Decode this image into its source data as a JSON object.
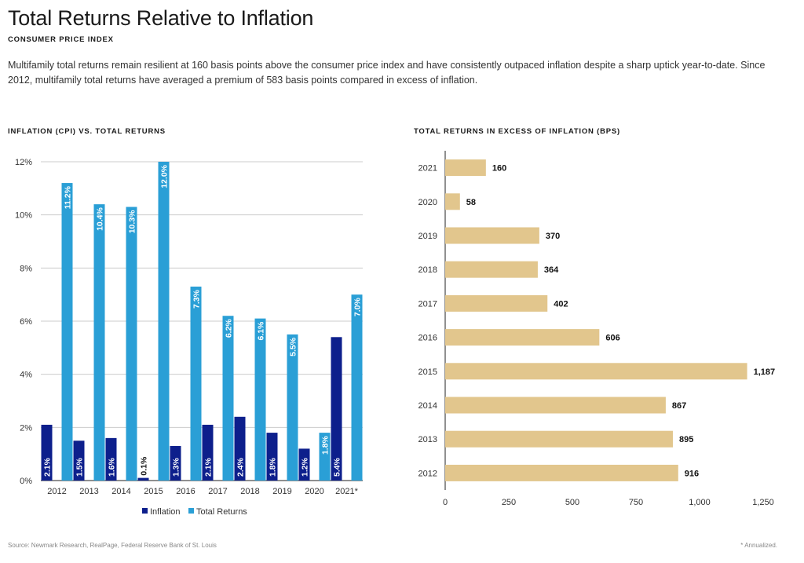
{
  "header": {
    "title": "Total Returns Relative to Inflation",
    "subtitle": "CONSUMER PRICE INDEX",
    "body": "Multifamily total returns remain resilient at 160 basis points above the consumer price index and have consistently outpaced inflation despite a sharp uptick year-to-date. Since 2012, multifamily total returns have averaged a premium of 583 basis points compared in excess of inflation."
  },
  "footer": {
    "source": "Source: Newmark Research, RealPage, Federal Reserve Bank of St. Louis",
    "note": "* Annualized."
  },
  "colors": {
    "inflation": "#0d1f8c",
    "total_returns": "#2a9fd6",
    "excess": "#e2c68d",
    "grid": "#cccccc",
    "axis": "#222222"
  },
  "chart_data": [
    {
      "type": "bar",
      "title": "INFLATION (CPI) VS. TOTAL RETURNS",
      "categories": [
        "2012",
        "2013",
        "2014",
        "2015",
        "2016",
        "2017",
        "2018",
        "2019",
        "2020",
        "2021*"
      ],
      "series": [
        {
          "name": "Inflation",
          "values": [
            2.1,
            1.5,
            1.6,
            0.1,
            1.3,
            2.1,
            2.4,
            1.8,
            1.2,
            5.4
          ],
          "labels": [
            "2.1%",
            "1.5%",
            "1.6%",
            "0.1%",
            "1.3%",
            "2.1%",
            "2.4%",
            "1.8%",
            "1.2%",
            "5.4%"
          ]
        },
        {
          "name": "Total Returns",
          "values": [
            11.2,
            10.4,
            10.3,
            12.0,
            7.3,
            6.2,
            6.1,
            5.5,
            1.8,
            7.0
          ],
          "labels": [
            "11.2%",
            "10.4%",
            "10.3%",
            "12.0%",
            "7.3%",
            "6.2%",
            "6.1%",
            "5.5%",
            "1.8%",
            "7.0%"
          ]
        }
      ],
      "ylim": [
        0,
        12
      ],
      "yticks": [
        0,
        2,
        4,
        6,
        8,
        10,
        12
      ],
      "ytick_labels": [
        "0%",
        "2%",
        "4%",
        "6%",
        "8%",
        "10%",
        "12%"
      ],
      "grid": true,
      "legend": "bottom"
    },
    {
      "type": "bar",
      "orientation": "horizontal",
      "title": "TOTAL RETURNS IN EXCESS OF INFLATION (BPS)",
      "categories": [
        "2021",
        "2020",
        "2019",
        "2018",
        "2017",
        "2016",
        "2015",
        "2014",
        "2013",
        "2012"
      ],
      "values": [
        160,
        58,
        370,
        364,
        402,
        606,
        1187,
        867,
        895,
        916
      ],
      "labels": [
        "160",
        "58",
        "370",
        "364",
        "402",
        "606",
        "1,187",
        "867",
        "895",
        "916"
      ],
      "xlim": [
        0,
        1250
      ],
      "xticks": [
        0,
        250,
        500,
        750,
        1000,
        1250
      ],
      "xtick_labels": [
        "0",
        "250",
        "500",
        "750",
        "1,000",
        "1,250"
      ],
      "grid": false
    }
  ]
}
